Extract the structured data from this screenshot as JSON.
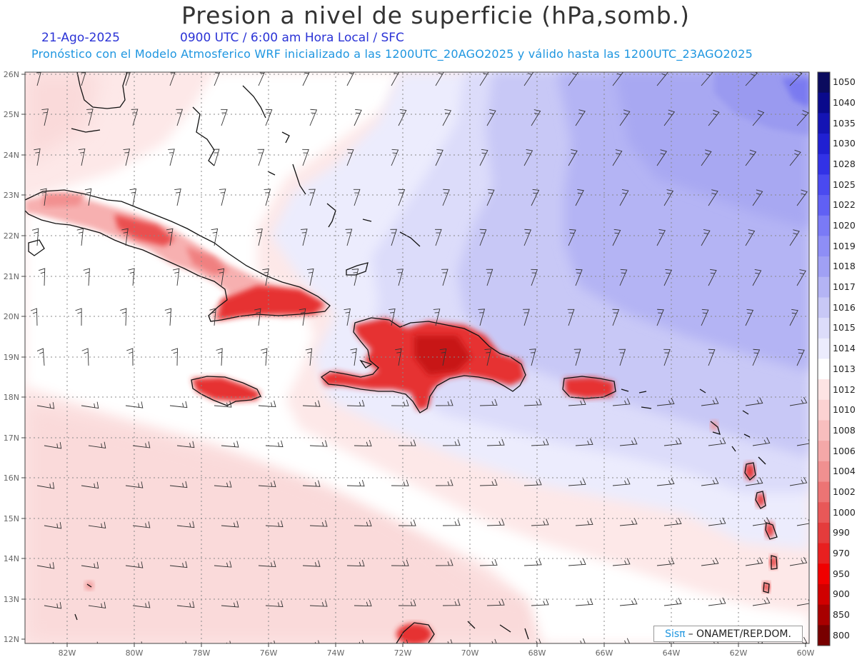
{
  "title": "Presion a nivel de superficie (hPa,somb.)",
  "date": "21-Ago-2025",
  "valid_time": "0900 UTC / 6:00 am Hora Local / SFC",
  "model_line": "Pronóstico con el Modelo Atmosferico WRF inicializado a las 1200UTC_20AGO2025 y válido hasta las  1200UTC_23AGO2025",
  "lat_labels": [
    "26N",
    "25N",
    "24N",
    "23N",
    "22N",
    "21N",
    "20N",
    "19N",
    "18N",
    "17N",
    "16N",
    "15N",
    "14N",
    "13N",
    "12N"
  ],
  "lon_labels": [
    "82W",
    "80W",
    "78W",
    "76W",
    "74W",
    "72W",
    "70W",
    "68W",
    "66W",
    "64W",
    "62W",
    "60W"
  ],
  "colorbar": {
    "labels": [
      "1050",
      "1040",
      "1035",
      "1030",
      "1028",
      "1025",
      "1022",
      "1020",
      "1019",
      "1018",
      "1017",
      "1016",
      "1015",
      "1014",
      "1013",
      "1012",
      "1010",
      "1008",
      "1006",
      "1004",
      "1002",
      "1000",
      "990",
      "970",
      "950",
      "900",
      "850",
      "800"
    ],
    "colors": [
      "#0b0b5e",
      "#0a0a8c",
      "#1414b4",
      "#2020d2",
      "#3232e6",
      "#4a4af0",
      "#6060f4",
      "#7a7af6",
      "#8e8ef6",
      "#a0a0f4",
      "#b4b4f4",
      "#c8c8f6",
      "#dcdcfa",
      "#ececfd",
      "#ffffff",
      "#fde4e4",
      "#fbd2d2",
      "#f8bebe",
      "#f4a8a8",
      "#f09090",
      "#ec7474",
      "#e85858",
      "#e43c3c",
      "#e82020",
      "#f00000",
      "#d00000",
      "#a80000",
      "#780000"
    ]
  },
  "badge": {
    "logo": "Sisπ",
    "text": "– ONAMET/REP.DOM."
  }
}
